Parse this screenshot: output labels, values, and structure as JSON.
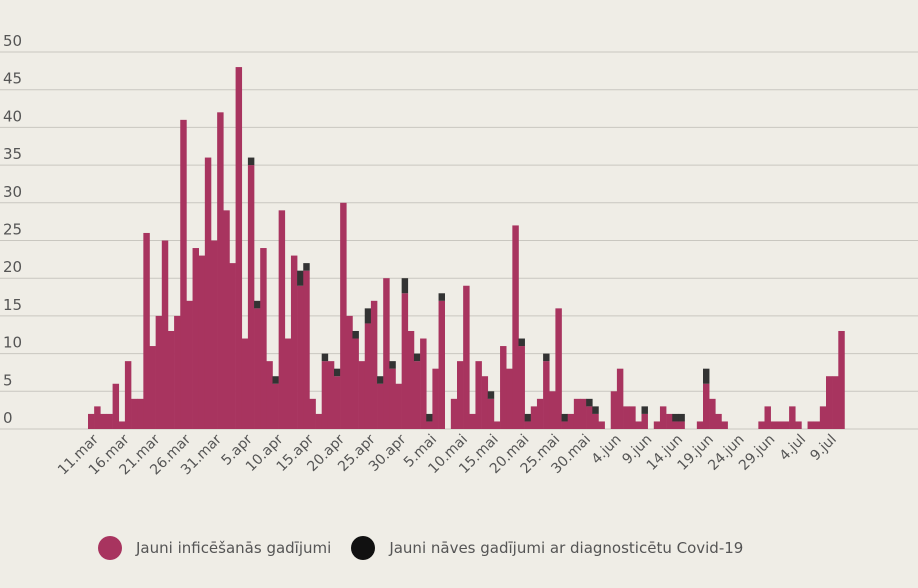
{
  "chart_data": {
    "type": "bar",
    "stacked": true,
    "title": "",
    "xlabel": "",
    "ylabel": "",
    "ylim": [
      0,
      50
    ],
    "yticks": [
      0,
      5,
      10,
      15,
      20,
      25,
      30,
      35,
      40,
      45,
      50
    ],
    "grid": true,
    "legend_position": "bottom",
    "x_tick_labels": [
      "11.mar",
      "16.mar",
      "21.mar",
      "26.mar",
      "31.mar",
      "5.apr",
      "10.apr",
      "15.apr",
      "20.apr",
      "25.apr",
      "30.apr",
      "5.mai",
      "10.mai",
      "15.mai",
      "20.mai",
      "25.mai",
      "30.mai",
      "4.jun",
      "9.jun",
      "14.jun",
      "19.jun",
      "24.jun",
      "29.jun",
      "4.jul",
      "9.jul"
    ],
    "x_tick_every": 5,
    "series": [
      {
        "name": "Jauni inficēšanās gadījumi",
        "color": "#a8345f",
        "values": [
          2,
          3,
          2,
          2,
          6,
          1,
          9,
          4,
          4,
          26,
          11,
          15,
          25,
          13,
          15,
          41,
          17,
          24,
          23,
          36,
          25,
          42,
          29,
          22,
          48,
          12,
          35,
          16,
          24,
          9,
          6,
          29,
          12,
          23,
          19,
          21,
          4,
          2,
          9,
          9,
          7,
          30,
          15,
          12,
          9,
          14,
          17,
          6,
          20,
          8,
          6,
          18,
          13,
          9,
          12,
          1,
          8,
          17,
          0,
          4,
          9,
          19,
          2,
          9,
          7,
          4,
          1,
          11,
          8,
          27,
          11,
          1,
          3,
          4,
          9,
          5,
          16,
          1,
          2,
          4,
          4,
          3,
          2,
          1,
          0,
          5,
          8,
          3,
          3,
          1,
          2,
          0,
          1,
          3,
          2,
          1,
          1,
          0,
          0,
          1,
          6,
          4,
          2,
          1,
          0,
          0,
          0,
          0,
          0,
          1,
          3,
          1,
          1,
          1,
          3,
          1,
          0,
          1,
          1,
          3,
          7,
          7,
          13
        ]
      },
      {
        "name": "Jauni nāves gadījumi ar diagnosticētu Covid-19",
        "color": "#333333",
        "values": [
          0,
          0,
          0,
          0,
          0,
          0,
          0,
          0,
          0,
          0,
          0,
          0,
          0,
          0,
          0,
          0,
          0,
          0,
          0,
          0,
          0,
          0,
          0,
          0,
          0,
          0,
          1,
          1,
          0,
          0,
          1,
          0,
          0,
          0,
          2,
          1,
          0,
          0,
          1,
          0,
          1,
          0,
          0,
          1,
          0,
          2,
          0,
          1,
          0,
          1,
          0,
          2,
          0,
          1,
          0,
          1,
          0,
          1,
          0,
          0,
          0,
          0,
          0,
          0,
          0,
          1,
          0,
          0,
          0,
          0,
          1,
          1,
          0,
          0,
          1,
          0,
          0,
          1,
          0,
          0,
          0,
          1,
          1,
          0,
          0,
          0,
          0,
          0,
          0,
          0,
          1,
          0,
          0,
          0,
          0,
          1,
          1,
          0,
          0,
          0,
          2,
          0,
          0,
          0,
          0,
          0,
          0,
          0,
          0,
          0,
          0,
          0,
          0,
          0,
          0,
          0,
          0,
          0,
          0,
          0,
          0,
          0,
          0
        ]
      }
    ]
  }
}
